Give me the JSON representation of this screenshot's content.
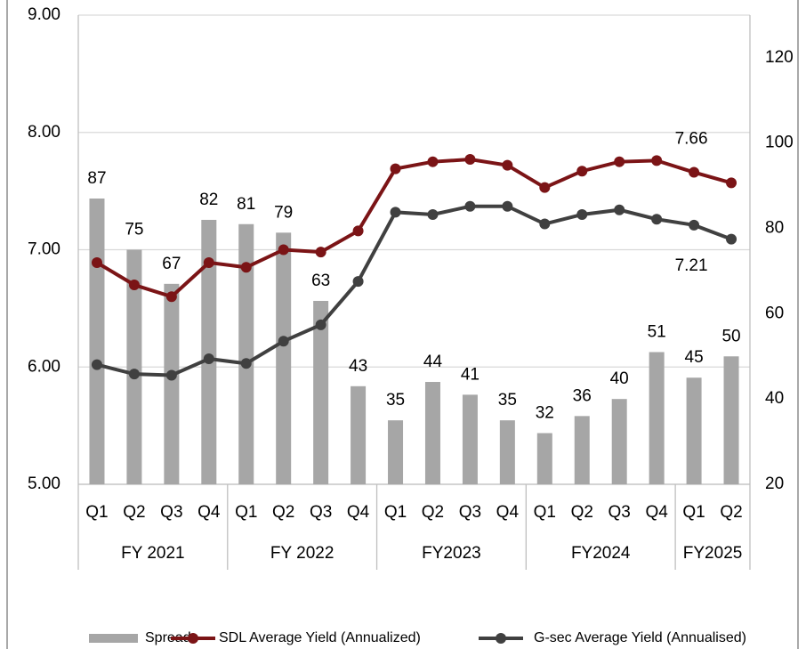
{
  "chart_data": {
    "type": "bar-line",
    "categories": [
      "Q1",
      "Q2",
      "Q3",
      "Q4",
      "Q1",
      "Q2",
      "Q3",
      "Q4",
      "Q1",
      "Q2",
      "Q3",
      "Q4",
      "Q1",
      "Q2",
      "Q3",
      "Q4",
      "Q1",
      "Q2"
    ],
    "groups": [
      {
        "name": "FY 2021",
        "count": 4
      },
      {
        "name": "FY 2022",
        "count": 4
      },
      {
        "name": "FY2023",
        "count": 4
      },
      {
        "name": "FY2024",
        "count": 4
      },
      {
        "name": "FY2025",
        "count": 2
      }
    ],
    "series": [
      {
        "name": "Spread",
        "type": "bar",
        "axis": "y2",
        "color": "#a6a6a6",
        "values": [
          87,
          75,
          67,
          82,
          81,
          79,
          63,
          43,
          35,
          44,
          41,
          35,
          32,
          36,
          40,
          51,
          45,
          50
        ]
      },
      {
        "name": "SDL Average Yield (Annualized)",
        "type": "line",
        "color": "#7b1416",
        "values": [
          6.89,
          6.7,
          6.6,
          6.89,
          6.85,
          7.0,
          6.98,
          7.16,
          7.69,
          7.75,
          7.77,
          7.72,
          7.53,
          7.67,
          7.75,
          7.76,
          7.66,
          7.57
        ],
        "value_labels": [
          null,
          null,
          null,
          null,
          null,
          null,
          null,
          null,
          null,
          null,
          null,
          null,
          null,
          null,
          null,
          null,
          "7.66",
          null
        ]
      },
      {
        "name": "G-sec Average Yield (Annualised)",
        "type": "line",
        "color": "#404040",
        "values": [
          6.02,
          5.94,
          5.93,
          6.07,
          6.03,
          6.22,
          6.36,
          6.73,
          7.32,
          7.3,
          7.37,
          7.37,
          7.22,
          7.3,
          7.34,
          7.26,
          7.21,
          7.09
        ],
        "value_labels": [
          null,
          null,
          null,
          null,
          null,
          null,
          null,
          null,
          null,
          null,
          null,
          null,
          null,
          null,
          null,
          null,
          "7.21",
          null
        ]
      }
    ],
    "ylim": [
      5,
      9
    ],
    "yticks": [
      {
        "value": 5,
        "label": "5.00"
      },
      {
        "value": 6,
        "label": "6.00"
      },
      {
        "value": 7,
        "label": "7.00"
      },
      {
        "value": 8,
        "label": "8.00"
      },
      {
        "value": 9,
        "label": "9.00"
      }
    ],
    "y2lim": [
      20,
      130
    ],
    "y2ticks": [
      20,
      40,
      60,
      80,
      100,
      120
    ],
    "grid": true,
    "legend": "bottom"
  }
}
